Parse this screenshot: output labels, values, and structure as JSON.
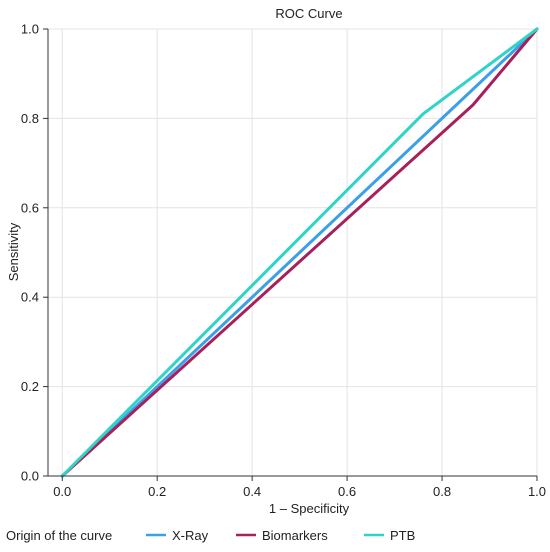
{
  "chart_data": {
    "type": "line",
    "title": "ROC Curve",
    "xlabel": "1 – Specificity",
    "ylabel": "Sensitivity",
    "xlim": [
      -0.03,
      1.0
    ],
    "ylim": [
      0.0,
      1.0
    ],
    "xticks": [
      "0.0",
      "0.2",
      "0.4",
      "0.6",
      "0.8",
      "1.0"
    ],
    "yticks": [
      "0.0",
      "0.2",
      "0.4",
      "0.6",
      "0.8",
      "1.0"
    ],
    "grid": true,
    "legend_title": "Origin of the curve",
    "legend_position": "bottom",
    "series": [
      {
        "name": "X-Ray",
        "color": "#3aa0e8",
        "x": [
          0.0,
          0.8,
          1.0
        ],
        "y": [
          0.0,
          0.8,
          1.0
        ]
      },
      {
        "name": "Biomarkers",
        "color": "#a8205a",
        "x": [
          0.0,
          0.865,
          1.0
        ],
        "y": [
          0.0,
          0.83,
          1.0
        ]
      },
      {
        "name": "PTB",
        "color": "#2fd3c8",
        "x": [
          0.0,
          0.76,
          1.0
        ],
        "y": [
          0.0,
          0.81,
          1.0
        ]
      }
    ]
  }
}
